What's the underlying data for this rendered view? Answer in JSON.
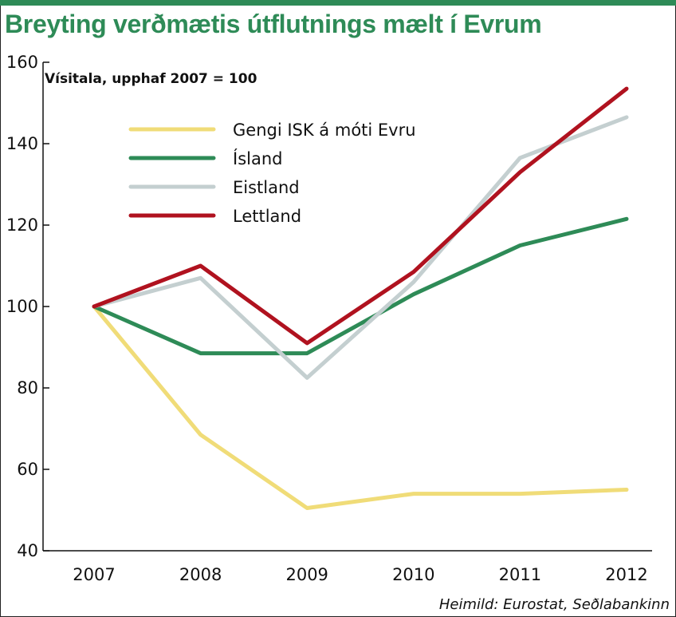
{
  "chart_data": {
    "type": "line",
    "title": "Breyting verðmætis útflutnings mælt í Evrum",
    "subtitle": "Vísitala, upphaf 2007 = 100",
    "source": "Heimild: Eurostat, Seðlabankinn",
    "categories": [
      "2007",
      "2008",
      "2009",
      "2010",
      "2011",
      "2012"
    ],
    "ylim": [
      40,
      160
    ],
    "yticks": [
      40,
      60,
      80,
      100,
      120,
      140,
      160
    ],
    "grid": false,
    "legend_position": "top-left",
    "series": [
      {
        "name": "Gengi ISK á móti Evru",
        "color": "#f0dc78",
        "values": [
          100,
          68.5,
          50.5,
          54,
          54,
          55
        ]
      },
      {
        "name": "Ísland",
        "color": "#2e8b57",
        "values": [
          100,
          88.5,
          88.5,
          103,
          115,
          121.5
        ]
      },
      {
        "name": "Eistland",
        "color": "#c4cfd0",
        "values": [
          100,
          107,
          82.5,
          106,
          136.5,
          146.5
        ]
      },
      {
        "name": "Lettland",
        "color": "#b0121f",
        "values": [
          100,
          110,
          91,
          108.5,
          133,
          153.5
        ]
      }
    ]
  }
}
